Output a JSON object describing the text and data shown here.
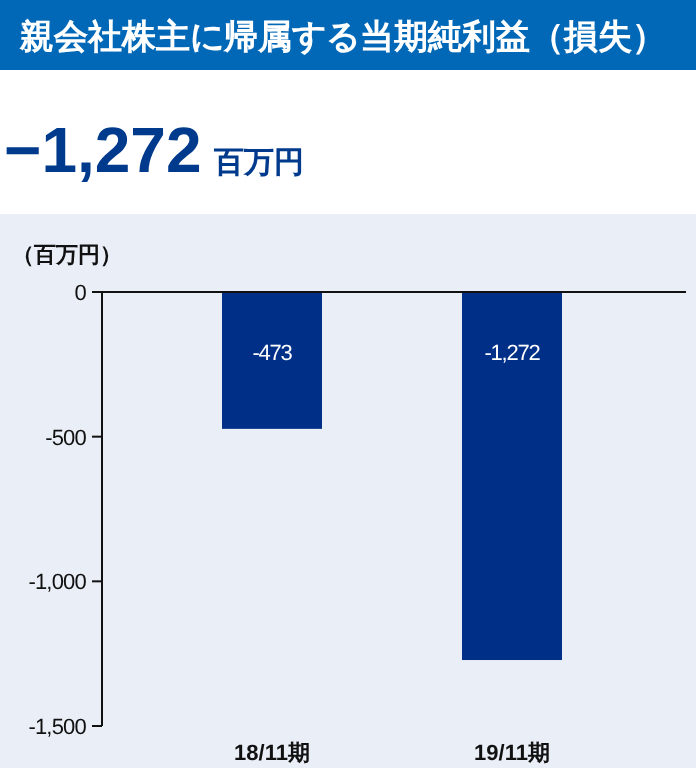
{
  "chart_data": {
    "type": "bar",
    "title": "親会社株主に帰属する当期純利益（損失）",
    "subtitle": "−1,272 百万円",
    "ylabel": "（百万円）",
    "categories": [
      "18/11期",
      "19/11期"
    ],
    "values": [
      -473,
      -1272
    ],
    "color": "#002f87",
    "value_labels": [
      "-473",
      "-1,272"
    ],
    "ylim": [
      -1500,
      0
    ],
    "yticks": [
      {
        "value": 0,
        "label": "0"
      },
      {
        "value": -500,
        "label": "-500"
      },
      {
        "value": -1000,
        "label": "-1,000"
      },
      {
        "value": -1500,
        "label": "-1,500"
      }
    ],
    "grid": false
  }
}
